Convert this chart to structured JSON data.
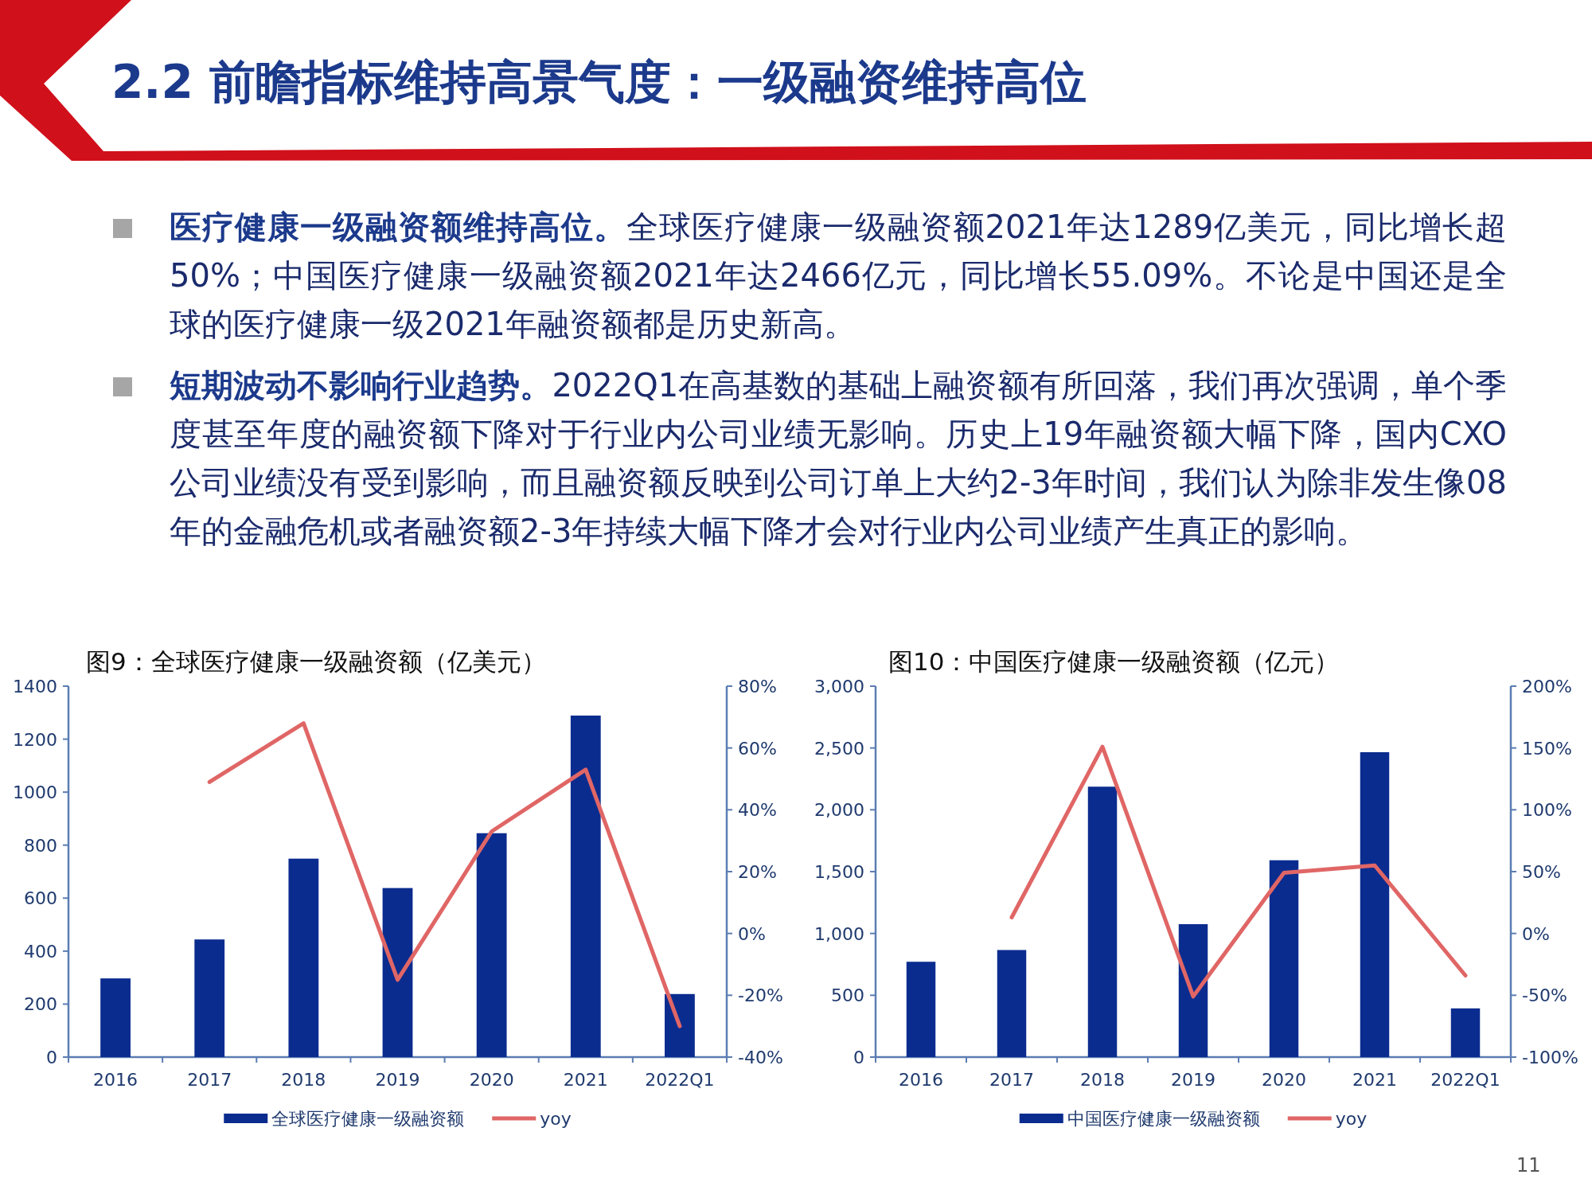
{
  "chart_data": [
    {
      "type": "other",
      "title": "2.2 前瞻指标维持高景气度：一级融资维持高位",
      "annotations": [
        "医疗健康一级融资额维持高位。",
        "全球医疗健康一级融资额2021年达1289亿美元，同比增长超50%；中国医疗健康一级融资额2021年达2466亿元，同比增长55.09%。不论是中国还是全球的医疗健康一级2021年融资额都是历史新高。",
        "短期波动不影响行业趋势。",
        "2022Q1在高基数的基础上融资额有所回落，我们再次强调，单个季度甚至年度的融资额下降对于行业内公司业绩无影响。历史上19年融资额大幅下降，国内CXO公司业绩没有受到影响，而且融资额反映到公司订单上大约2-3年时间，我们认为除非发生像08年的金融危机或者融资额2-3年持续大幅下降才会对行业内公司业绩产生真正的影响。",
        "11"
      ]
    },
    {
      "type": "bar",
      "title": "图9：全球医疗健康一级融资额（亿美元）",
      "categories": [
        "2016",
        "2017",
        "2018",
        "2019",
        "2020",
        "2021",
        "2022Q1"
      ],
      "series": [
        {
          "name": "全球医疗健康一级融资额",
          "color": "#0b2c8f",
          "values": [
            297,
            444,
            749,
            638,
            845,
            1289,
            238
          ]
        },
        {
          "name": "yoy",
          "type": "line",
          "axis": "y2",
          "color": "#e06666",
          "values": [
            null,
            49,
            68,
            -15,
            33,
            53,
            -30
          ]
        }
      ],
      "ylim": [
        0,
        1400
      ],
      "yticks": [
        0,
        200,
        400,
        600,
        800,
        1000,
        1200,
        1400
      ],
      "y2lim": [
        -40,
        80
      ],
      "y2ticks": [
        {
          "value": -40,
          "label": "-40%"
        },
        {
          "value": -20,
          "label": "-20%"
        },
        {
          "value": 0,
          "label": "0%"
        },
        {
          "value": 20,
          "label": "20%"
        },
        {
          "value": 40,
          "label": "40%"
        },
        {
          "value": 60,
          "label": "60%"
        },
        {
          "value": 80,
          "label": "80%"
        }
      ],
      "legend": "bottom"
    },
    {
      "type": "bar",
      "title": "图10：中国医疗健康一级融资额（亿元）",
      "categories": [
        "2016",
        "2017",
        "2018",
        "2019",
        "2020",
        "2021",
        "2022Q1"
      ],
      "series": [
        {
          "name": "中国医疗健康一级融资额",
          "color": "#0b2c8f",
          "values": [
            771,
            866,
            2187,
            1075,
            1592,
            2466,
            394
          ]
        },
        {
          "name": "yoy",
          "type": "line",
          "axis": "y2",
          "color": "#e06666",
          "values": [
            null,
            13,
            151,
            -51,
            49,
            55,
            -34
          ]
        }
      ],
      "ylim": [
        0,
        3000
      ],
      "yticks": [
        {
          "value": 0,
          "label": "0"
        },
        {
          "value": 500,
          "label": "500"
        },
        {
          "value": 1000,
          "label": "1,000"
        },
        {
          "value": 1500,
          "label": "1,500"
        },
        {
          "value": 2000,
          "label": "2,000"
        },
        {
          "value": 2500,
          "label": "2,500"
        },
        {
          "value": 3000,
          "label": "3,000"
        }
      ],
      "y2lim": [
        -100,
        200
      ],
      "y2ticks": [
        {
          "value": -100,
          "label": "-100%"
        },
        {
          "value": -50,
          "label": "-50%"
        },
        {
          "value": 0,
          "label": "0%"
        },
        {
          "value": 50,
          "label": "50%"
        },
        {
          "value": 100,
          "label": "100%"
        },
        {
          "value": 150,
          "label": "150%"
        },
        {
          "value": 200,
          "label": "200%"
        }
      ],
      "legend": "bottom"
    }
  ]
}
